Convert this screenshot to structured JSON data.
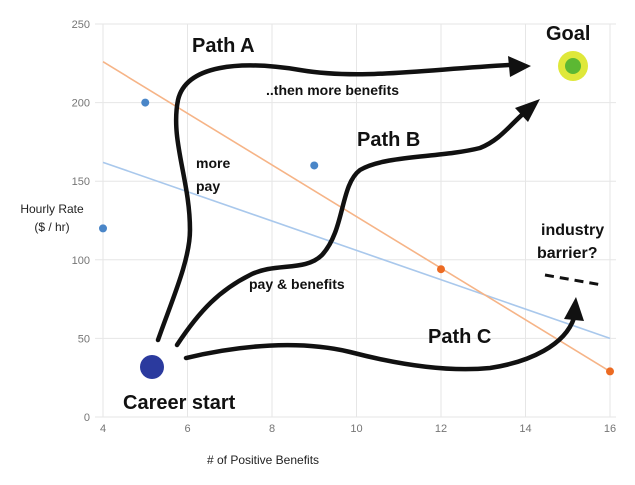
{
  "chart_data": {
    "type": "scatter",
    "title": "",
    "xlabel": "# of Positive Benefits",
    "ylabel_line1": "Hourly Rate",
    "ylabel_line2": "($ / hr)",
    "xlim": [
      4,
      16
    ],
    "ylim": [
      0,
      250
    ],
    "x_ticks": [
      4,
      6,
      8,
      10,
      12,
      14,
      16
    ],
    "y_ticks": [
      0,
      50,
      100,
      150,
      200,
      250
    ],
    "grid": true,
    "series": [
      {
        "color": "#4a86c8",
        "points": [
          {
            "x": 4,
            "y": 120
          },
          {
            "x": 5,
            "y": 200
          },
          {
            "x": 9,
            "y": 160
          }
        ],
        "trendline": {
          "x": [
            4,
            16
          ],
          "y": [
            162,
            50
          ],
          "color": "#a9c8ec"
        }
      },
      {
        "color": "#ec6b23",
        "points": [
          {
            "x": 12,
            "y": 94
          },
          {
            "x": 16,
            "y": 29
          }
        ],
        "trendline": {
          "x": [
            4,
            16
          ],
          "y": [
            226,
            29
          ],
          "color": "#f6b487"
        }
      }
    ]
  },
  "annotations": {
    "path_a": "Path A",
    "path_b": "Path B",
    "path_c": "Path C",
    "goal": "Goal",
    "then_more_benefits": "..then more benefits",
    "more_pay_line1": "more",
    "more_pay_line2": "pay",
    "pay_and_benefits": "pay & benefits",
    "industry_line1": "industry",
    "industry_line2": "barrier?",
    "career_start": "Career start"
  },
  "colors": {
    "career_start_dot": "#2b3a9e",
    "goal_outer": "#dfe83a",
    "goal_inner": "#5cb833",
    "arrow": "#111111"
  }
}
